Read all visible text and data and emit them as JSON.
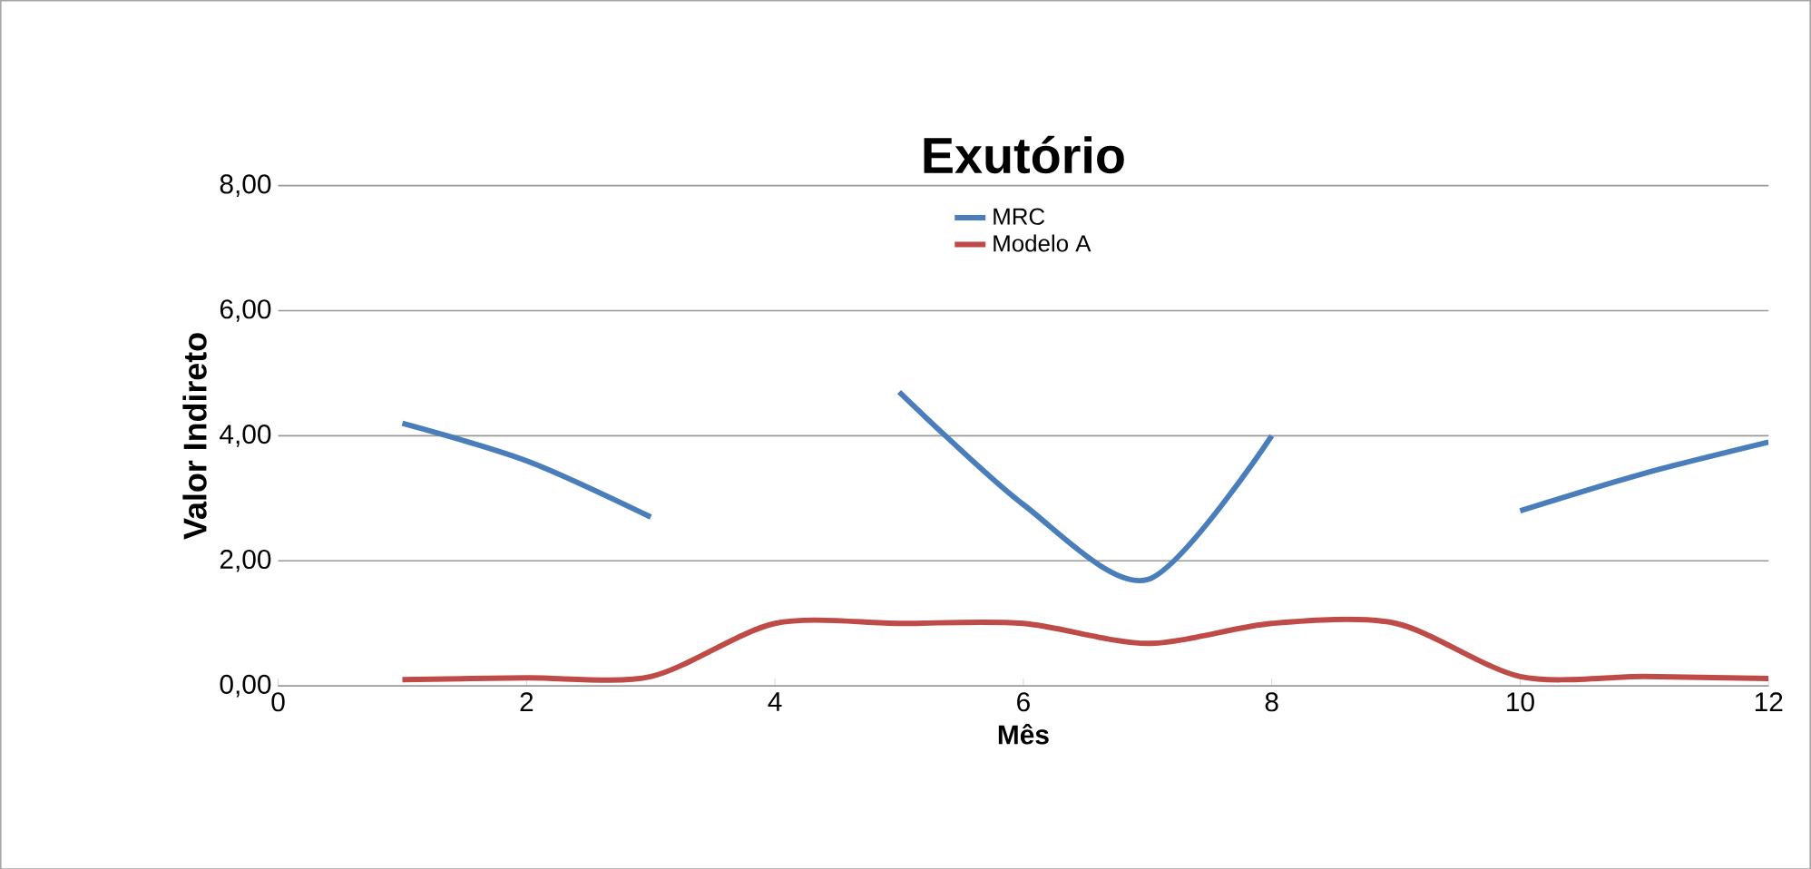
{
  "chart_data": {
    "type": "line",
    "title": "Exutório",
    "xlabel": "Mês",
    "ylabel": "Valor Indireto",
    "x": [
      1,
      2,
      3,
      4,
      5,
      6,
      7,
      8,
      9,
      10,
      11,
      12
    ],
    "series": [
      {
        "name": "MRC",
        "color": "#4a7ebb",
        "values": [
          4.2,
          3.6,
          2.7,
          null,
          4.7,
          2.9,
          1.7,
          4.0,
          null,
          2.8,
          3.4,
          3.9
        ]
      },
      {
        "name": "Modelo A",
        "color": "#be4b48",
        "values": [
          0.1,
          0.13,
          0.15,
          1.0,
          1.0,
          1.0,
          0.68,
          1.0,
          1.0,
          0.15,
          0.15,
          0.12
        ]
      }
    ],
    "xlim": [
      0,
      12
    ],
    "xticks": [
      0,
      2,
      4,
      6,
      8,
      10,
      12
    ],
    "ylim": [
      0,
      8
    ],
    "yticks": [
      {
        "value": 0,
        "label": "0,00"
      },
      {
        "value": 2,
        "label": "2,00"
      },
      {
        "value": 4,
        "label": "4,00"
      },
      {
        "value": 6,
        "label": "6,00"
      },
      {
        "value": 8,
        "label": "8,00"
      }
    ],
    "grid": "y",
    "legend": "top",
    "marker": "none",
    "line_style": "solid"
  }
}
